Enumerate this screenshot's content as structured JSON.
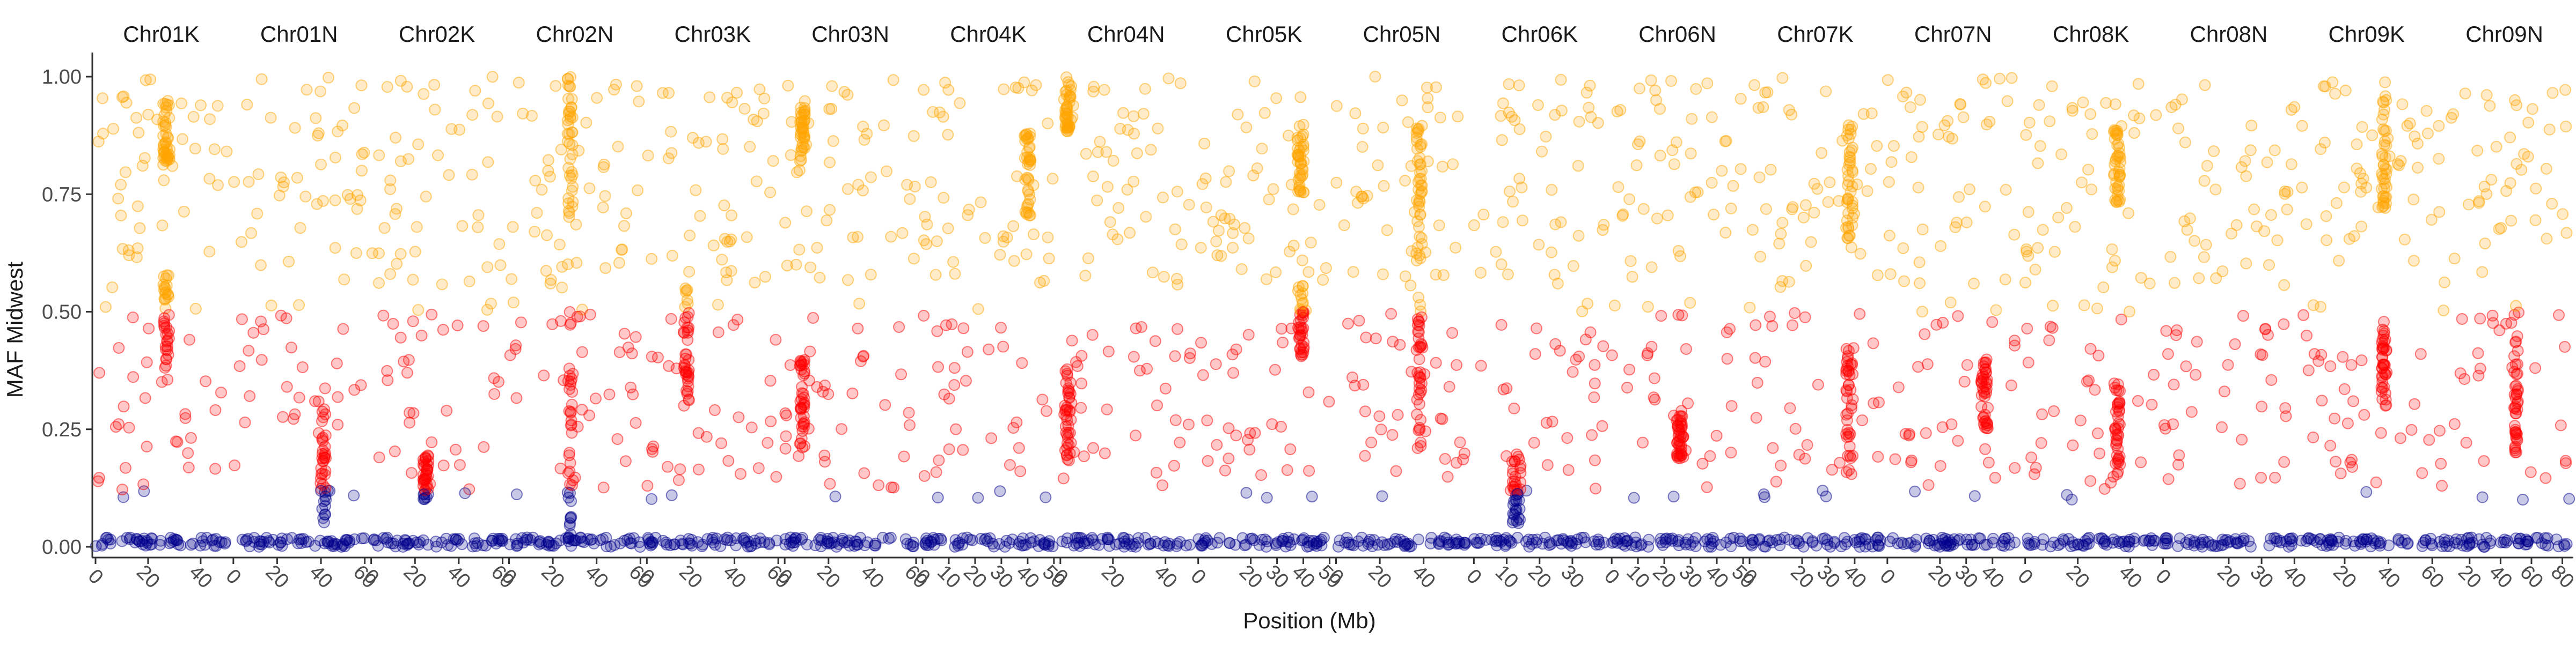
{
  "chart_data": {
    "type": "scatter",
    "title": "",
    "xlabel": "Position (Mb)",
    "ylabel": "MAF Midwest",
    "ylim": [
      0,
      1
    ],
    "y_ticks": [
      "0.00",
      "0.25",
      "0.50",
      "0.75",
      "1.00"
    ],
    "grid": false,
    "legend": "none",
    "point_colors": {
      "low": "#00008B",
      "mid": "#FF0000",
      "high": "#FFA500"
    },
    "panels": [
      {
        "name": "Chr01K",
        "xlim": [
          0,
          50
        ],
        "xticks": [
          0,
          20,
          40
        ],
        "clusters": [
          {
            "x": 27,
            "y_min": 0.38,
            "y_max": 0.58
          },
          {
            "x": 27,
            "y_min": 0.82,
            "y_max": 0.95
          }
        ]
      },
      {
        "name": "Chr01N",
        "xlim": [
          0,
          60
        ],
        "xticks": [
          0,
          20,
          40,
          60
        ],
        "clusters": [
          {
            "x": 41,
            "y_min": 0.05,
            "y_max": 0.3
          }
        ]
      },
      {
        "name": "Chr02K",
        "xlim": [
          0,
          60
        ],
        "xticks": [
          0,
          20,
          40,
          60
        ],
        "clusters": [
          {
            "x": 25,
            "y_min": 0.1,
            "y_max": 0.2
          }
        ]
      },
      {
        "name": "Chr02N",
        "xlim": [
          0,
          60
        ],
        "xticks": [
          0,
          20,
          40,
          60
        ],
        "clusters": [
          {
            "x": 28,
            "y_min": 0.0,
            "y_max": 0.5
          },
          {
            "x": 28,
            "y_min": 0.7,
            "y_max": 1.0
          }
        ]
      },
      {
        "name": "Chr03K",
        "xlim": [
          0,
          60
        ],
        "xticks": [
          0,
          20,
          40,
          60
        ],
        "clusters": [
          {
            "x": 18,
            "y_min": 0.3,
            "y_max": 0.55
          }
        ]
      },
      {
        "name": "Chr03N",
        "xlim": [
          0,
          60
        ],
        "xticks": [
          0,
          20,
          40,
          60
        ],
        "clusters": [
          {
            "x": 8,
            "y_min": 0.2,
            "y_max": 0.4
          },
          {
            "x": 8,
            "y_min": 0.82,
            "y_max": 0.95
          }
        ]
      },
      {
        "name": "Chr04K",
        "xlim": [
          0,
          50
        ],
        "xticks": [
          0,
          10,
          20,
          30,
          40,
          50
        ],
        "clusters": [
          {
            "x": 40,
            "y_min": 0.7,
            "y_max": 0.88
          }
        ]
      },
      {
        "name": "Chr04N",
        "xlim": [
          0,
          50
        ],
        "xticks": [
          0,
          20,
          40
        ],
        "clusters": [
          {
            "x": 3,
            "y_min": 0.18,
            "y_max": 0.38
          },
          {
            "x": 3,
            "y_min": 0.88,
            "y_max": 1.0
          }
        ]
      },
      {
        "name": "Chr05K",
        "xlim": [
          0,
          50
        ],
        "xticks": [
          0,
          20,
          30,
          40,
          50
        ],
        "clusters": [
          {
            "x": 39,
            "y_min": 0.4,
            "y_max": 0.56
          },
          {
            "x": 39,
            "y_min": 0.75,
            "y_max": 0.9
          }
        ]
      },
      {
        "name": "Chr05N",
        "xlim": [
          0,
          60
        ],
        "xticks": [
          0,
          20,
          40
        ],
        "clusters": [
          {
            "x": 38,
            "y_min": 0.2,
            "y_max": 0.55
          },
          {
            "x": 38,
            "y_min": 0.6,
            "y_max": 0.9
          }
        ]
      },
      {
        "name": "Chr06K",
        "xlim": [
          0,
          40
        ],
        "xticks": [
          0,
          10,
          20,
          30
        ],
        "clusters": [
          {
            "x": 13,
            "y_min": 0.05,
            "y_max": 0.2
          }
        ]
      },
      {
        "name": "Chr06N",
        "xlim": [
          0,
          50
        ],
        "xticks": [
          0,
          10,
          20,
          30,
          40,
          50
        ],
        "clusters": [
          {
            "x": 26,
            "y_min": 0.18,
            "y_max": 0.28
          }
        ]
      },
      {
        "name": "Chr07K",
        "xlim": [
          0,
          50
        ],
        "xticks": [
          0,
          20,
          30,
          40
        ],
        "clusters": [
          {
            "x": 38,
            "y_min": 0.15,
            "y_max": 0.45
          },
          {
            "x": 38,
            "y_min": 0.65,
            "y_max": 0.9
          }
        ]
      },
      {
        "name": "Chr07N",
        "xlim": [
          0,
          50
        ],
        "xticks": [
          0,
          20,
          30,
          40
        ],
        "clusters": [
          {
            "x": 37,
            "y_min": 0.25,
            "y_max": 0.4
          }
        ]
      },
      {
        "name": "Chr08K",
        "xlim": [
          0,
          50
        ],
        "xticks": [
          0,
          20,
          40
        ],
        "clusters": [
          {
            "x": 35,
            "y_min": 0.15,
            "y_max": 0.35
          },
          {
            "x": 35,
            "y_min": 0.72,
            "y_max": 0.9
          }
        ]
      },
      {
        "name": "Chr08N",
        "xlim": [
          0,
          40
        ],
        "xticks": [
          0,
          20,
          30,
          40
        ],
        "clusters": []
      },
      {
        "name": "Chr09K",
        "xlim": [
          0,
          60
        ],
        "xticks": [
          20,
          40,
          60
        ],
        "clusters": [
          {
            "x": 38,
            "y_min": 0.3,
            "y_max": 0.48
          },
          {
            "x": 38,
            "y_min": 0.72,
            "y_max": 1.0
          }
        ]
      },
      {
        "name": "Chr09N",
        "xlim": [
          0,
          85
        ],
        "xticks": [
          20,
          40,
          60,
          80
        ],
        "clusters": [
          {
            "x": 50,
            "y_min": 0.2,
            "y_max": 0.45
          }
        ]
      }
    ]
  }
}
